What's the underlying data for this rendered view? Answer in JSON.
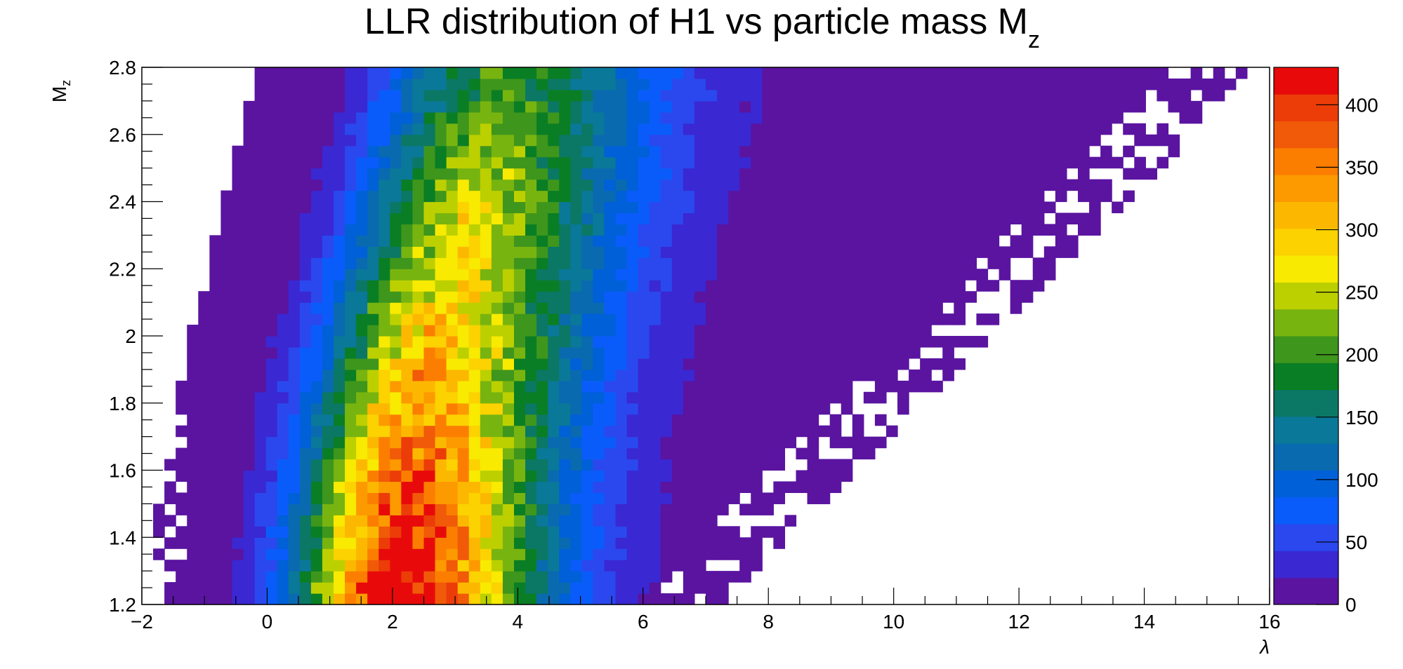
{
  "chart_data": {
    "type": "heatmap",
    "title": "LLR distribution of H1 vs particle mass M",
    "title_subscript": "z",
    "xlabel": "λ",
    "ylabel": "M",
    "ylabel_subscript": "z",
    "xlim": [
      -2,
      16
    ],
    "ylim": [
      1.2,
      2.8
    ],
    "x_ticks": [
      "−2",
      "0",
      "2",
      "4",
      "6",
      "8",
      "10",
      "12",
      "14",
      "16"
    ],
    "y_ticks": [
      "1.2",
      "1.4",
      "1.6",
      "1.8",
      "2",
      "2.2",
      "2.4",
      "2.6",
      "2.8"
    ],
    "bins": {
      "nx": 100,
      "ny": 48
    },
    "z_range": [
      0,
      430
    ],
    "z_ticks": [
      "0",
      "50",
      "100",
      "150",
      "200",
      "250",
      "300",
      "350",
      "400"
    ],
    "palette": [
      "#5a14a0",
      "#3a28d2",
      "#2a48ee",
      "#0a5cfa",
      "#0060d8",
      "#0a6ab0",
      "#0a7898",
      "#0a7864",
      "#0a7e24",
      "#3e961c",
      "#78b410",
      "#bcd000",
      "#f8ea00",
      "#fcd200",
      "#fcb800",
      "#fc9a00",
      "#fc7e00",
      "#f05a08",
      "#ec3c08",
      "#e80a0a"
    ],
    "ridge": [
      {
        "y": 1.25,
        "x_peak": 2.0,
        "peak": 415
      },
      {
        "y": 1.5,
        "x_peak": 2.1,
        "peak": 370
      },
      {
        "y": 1.8,
        "x_peak": 2.3,
        "peak": 315
      },
      {
        "y": 2.1,
        "x_peak": 2.6,
        "peak": 270
      },
      {
        "y": 2.4,
        "x_peak": 3.0,
        "peak": 235
      },
      {
        "y": 2.75,
        "x_peak": 3.4,
        "peak": 185
      }
    ]
  }
}
